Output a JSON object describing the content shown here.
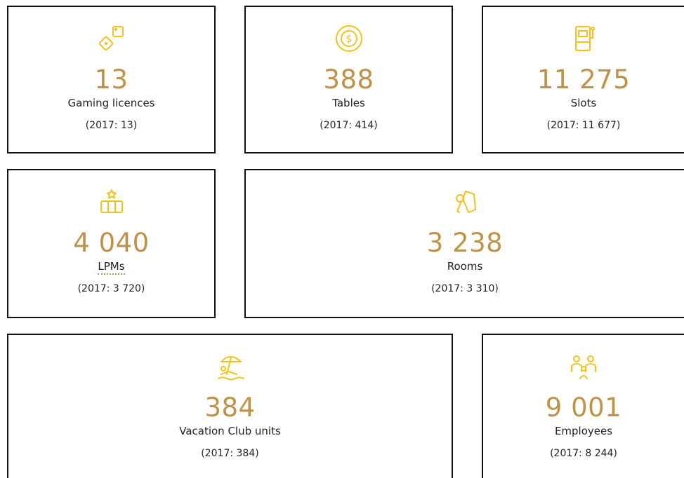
{
  "cards": [
    {
      "value": "13",
      "label": "Gaming licences",
      "prior": "(2017: 13)"
    },
    {
      "value": "388",
      "label": "Tables",
      "prior": "(2017: 414)"
    },
    {
      "value": "11 275",
      "label": "Slots",
      "prior": "(2017: 11 677)"
    },
    {
      "value": "4 040",
      "label": "LPMs",
      "prior": "(2017: 3 720)"
    },
    {
      "value": "3 238",
      "label": "Rooms",
      "prior": "(2017: 3 310)"
    },
    {
      "value": "384",
      "label": "Vacation Club units",
      "prior": "(2017: 384)"
    },
    {
      "value": "9 001",
      "label": "Employees",
      "prior": "(2017: 8 244)"
    }
  ]
}
